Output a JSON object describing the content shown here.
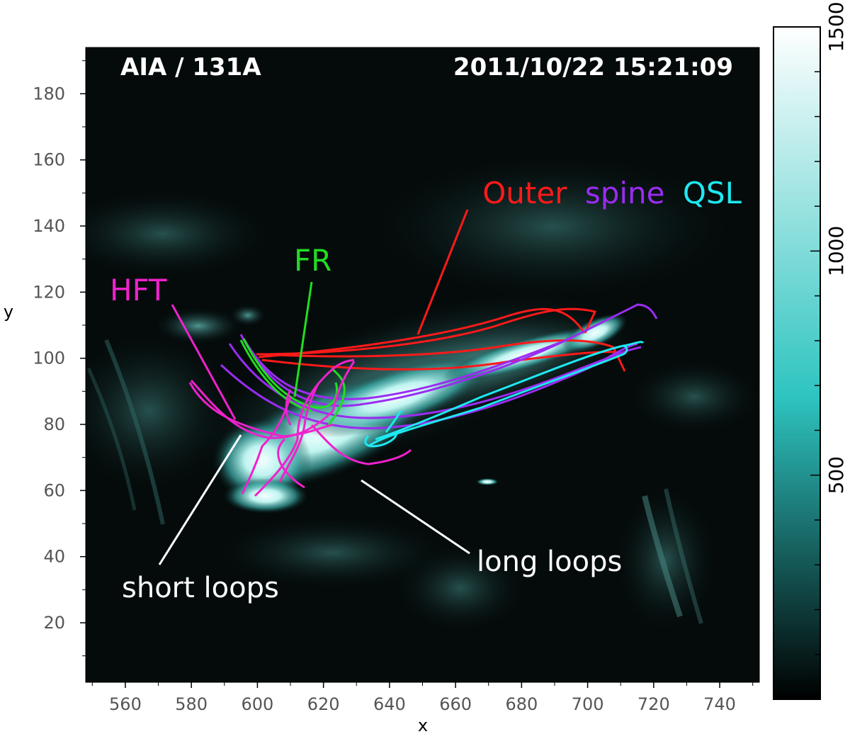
{
  "image": {
    "instrument_label": "AIA / 131A",
    "timestamp": "2011/10/22 15:21:09"
  },
  "axes": {
    "xlabel": "x",
    "ylabel": "y",
    "x_range": [
      548,
      752
    ],
    "y_range": [
      2,
      194
    ],
    "x_ticks": [
      "560",
      "580",
      "600",
      "620",
      "640",
      "660",
      "680",
      "700",
      "720",
      "740"
    ],
    "y_ticks": [
      "20",
      "40",
      "60",
      "80",
      "100",
      "120",
      "140",
      "160",
      "180"
    ]
  },
  "colorbar": {
    "range": [
      0,
      1500
    ],
    "tick_labels": [
      "500",
      "1000",
      "1500"
    ],
    "colors": {
      "low": "#000000",
      "mid": "#2ec4c0",
      "high": "#ffffff"
    }
  },
  "annotations": {
    "outer": {
      "text": "Outer",
      "color": "#ff1a1a"
    },
    "spine": {
      "text": "spine",
      "color": "#9a2cf0"
    },
    "qsl": {
      "text": "QSL",
      "color": "#1ee8f0"
    },
    "fr": {
      "text": "FR",
      "color": "#22dd22"
    },
    "hft": {
      "text": "HFT",
      "color": "#ee22cc"
    },
    "short_loops": {
      "text": "short loops",
      "color": "#ffffff"
    },
    "long_loops": {
      "text": "long loops",
      "color": "#ffffff"
    }
  }
}
